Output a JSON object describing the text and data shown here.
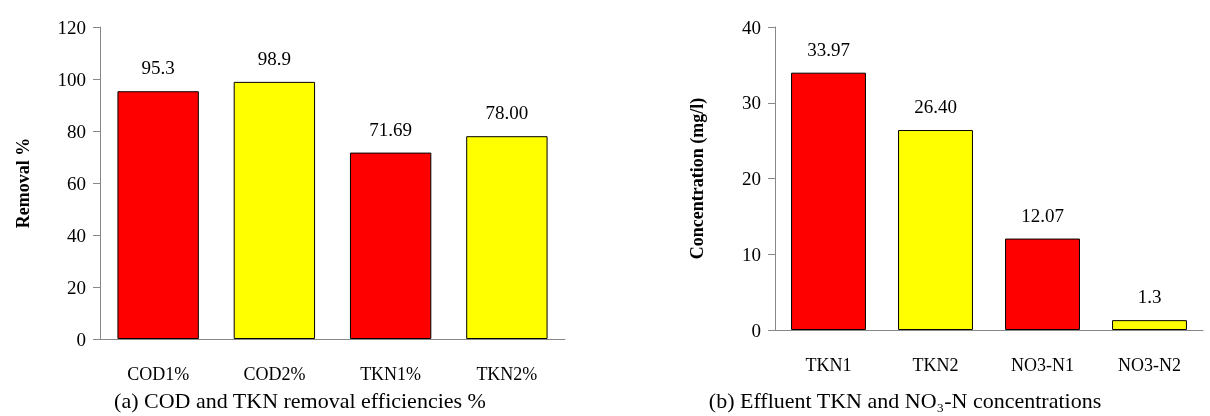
{
  "chart_data": [
    {
      "type": "bar",
      "title": "(a) COD and TKN removal efficiencies %",
      "ylabel": "Removal %",
      "categories": [
        "COD1%",
        "COD2%",
        "TKN1%",
        "TKN2%"
      ],
      "values": [
        95.3,
        98.9,
        71.69,
        78.0
      ],
      "colors": [
        "#ff0000",
        "#ffff00",
        "#ff0000",
        "#ffff00"
      ],
      "value_labels": [
        "95.3",
        "98.9",
        "71.69",
        "78.00"
      ],
      "ylim": [
        0,
        120
      ],
      "yticks": [
        0,
        20,
        40,
        60,
        80,
        100,
        120
      ],
      "grid": false
    },
    {
      "type": "bar",
      "title": "(b) Effluent TKN and NO₃-N concentrations",
      "ylabel": "Concentration (mg/l)",
      "categories": [
        "TKN1",
        "TKN2",
        "NO3-N1",
        "NO3-N2"
      ],
      "values": [
        33.97,
        26.4,
        12.07,
        1.3
      ],
      "colors": [
        "#ff0000",
        "#ffff00",
        "#ff0000",
        "#ffff00"
      ],
      "value_labels": [
        "33.97",
        "26.40",
        "12.07",
        "1.3"
      ],
      "ylim": [
        0,
        40
      ],
      "yticks": [
        0,
        10,
        20,
        30,
        40
      ],
      "grid": false
    }
  ]
}
